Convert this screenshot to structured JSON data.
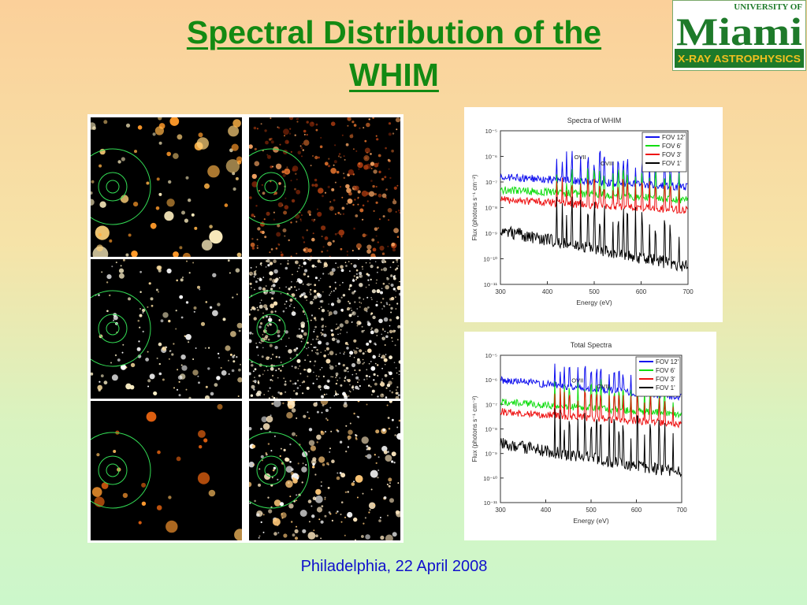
{
  "slide": {
    "title_line1": "Spectral Distribution of the",
    "title_line2": "WHIM",
    "footer": "Philadelphia, 22 April 2008"
  },
  "logo": {
    "top_text": "UNIVERSITY OF",
    "main_text": "Miami",
    "band_text": "X-RAY ASTROPHYSICS"
  },
  "colors": {
    "title": "#138a13",
    "footer": "#1010cc",
    "logo_green": "#1e7a2a",
    "logo_band_text": "#f0c020"
  },
  "sky_maps": {
    "panel_count": 6,
    "layout": "3 rows x 2 columns"
  },
  "chart_data": [
    {
      "type": "line",
      "title": "Spectra of WHIM",
      "xlabel": "Energy (eV)",
      "ylabel": "Flux (photons s⁻¹ cm⁻²)",
      "xlim": [
        300,
        700
      ],
      "xticks": [
        "300",
        "400",
        "500",
        "600",
        "700"
      ],
      "yticks": [
        "10⁻⁵",
        "10⁻⁶",
        "10⁻⁷",
        "10⁻⁸",
        "10⁻⁹",
        "10⁻¹⁰",
        "10⁻¹¹"
      ],
      "ylim_log10": [
        -11,
        -5
      ],
      "annotations": [
        "OVII",
        "OVIII"
      ],
      "legend": "top-right",
      "series": [
        {
          "name": "FOV 12'",
          "color": "#1010ee",
          "approx_log10_flux": [
            -6.8,
            -7.2
          ]
        },
        {
          "name": "FOV 6'",
          "color": "#11dd11",
          "approx_log10_flux": [
            -7.3,
            -7.7
          ]
        },
        {
          "name": "FOV 3'",
          "color": "#ee1111",
          "approx_log10_flux": [
            -7.7,
            -8.1
          ]
        },
        {
          "name": "FOV 1'",
          "color": "#000000",
          "approx_log10_flux": [
            -8.9,
            -10.3
          ]
        }
      ]
    },
    {
      "type": "line",
      "title": "Total Spectra",
      "xlabel": "Energy (eV)",
      "ylabel": "Flux (photons s⁻¹ cm⁻²)",
      "xlim": [
        300,
        700
      ],
      "xticks": [
        "300",
        "400",
        "500",
        "600",
        "700"
      ],
      "yticks": [
        "10⁻⁵",
        "10⁻⁶",
        "10⁻⁷",
        "10⁻⁸",
        "10⁻⁹",
        "10⁻¹⁰",
        "10⁻¹¹"
      ],
      "ylim_log10": [
        -11,
        -5
      ],
      "annotations": [
        "OVII",
        "OVIII"
      ],
      "legend": "top-right",
      "series": [
        {
          "name": "FOV 12'",
          "color": "#1010ee",
          "approx_log10_flux": [
            -6.0,
            -6.7
          ]
        },
        {
          "name": "FOV 6'",
          "color": "#11dd11",
          "approx_log10_flux": [
            -6.9,
            -7.4
          ]
        },
        {
          "name": "FOV 3'",
          "color": "#ee1111",
          "approx_log10_flux": [
            -7.3,
            -7.8
          ]
        },
        {
          "name": "FOV 1'",
          "color": "#000000",
          "approx_log10_flux": [
            -8.6,
            -9.8
          ]
        }
      ]
    }
  ]
}
